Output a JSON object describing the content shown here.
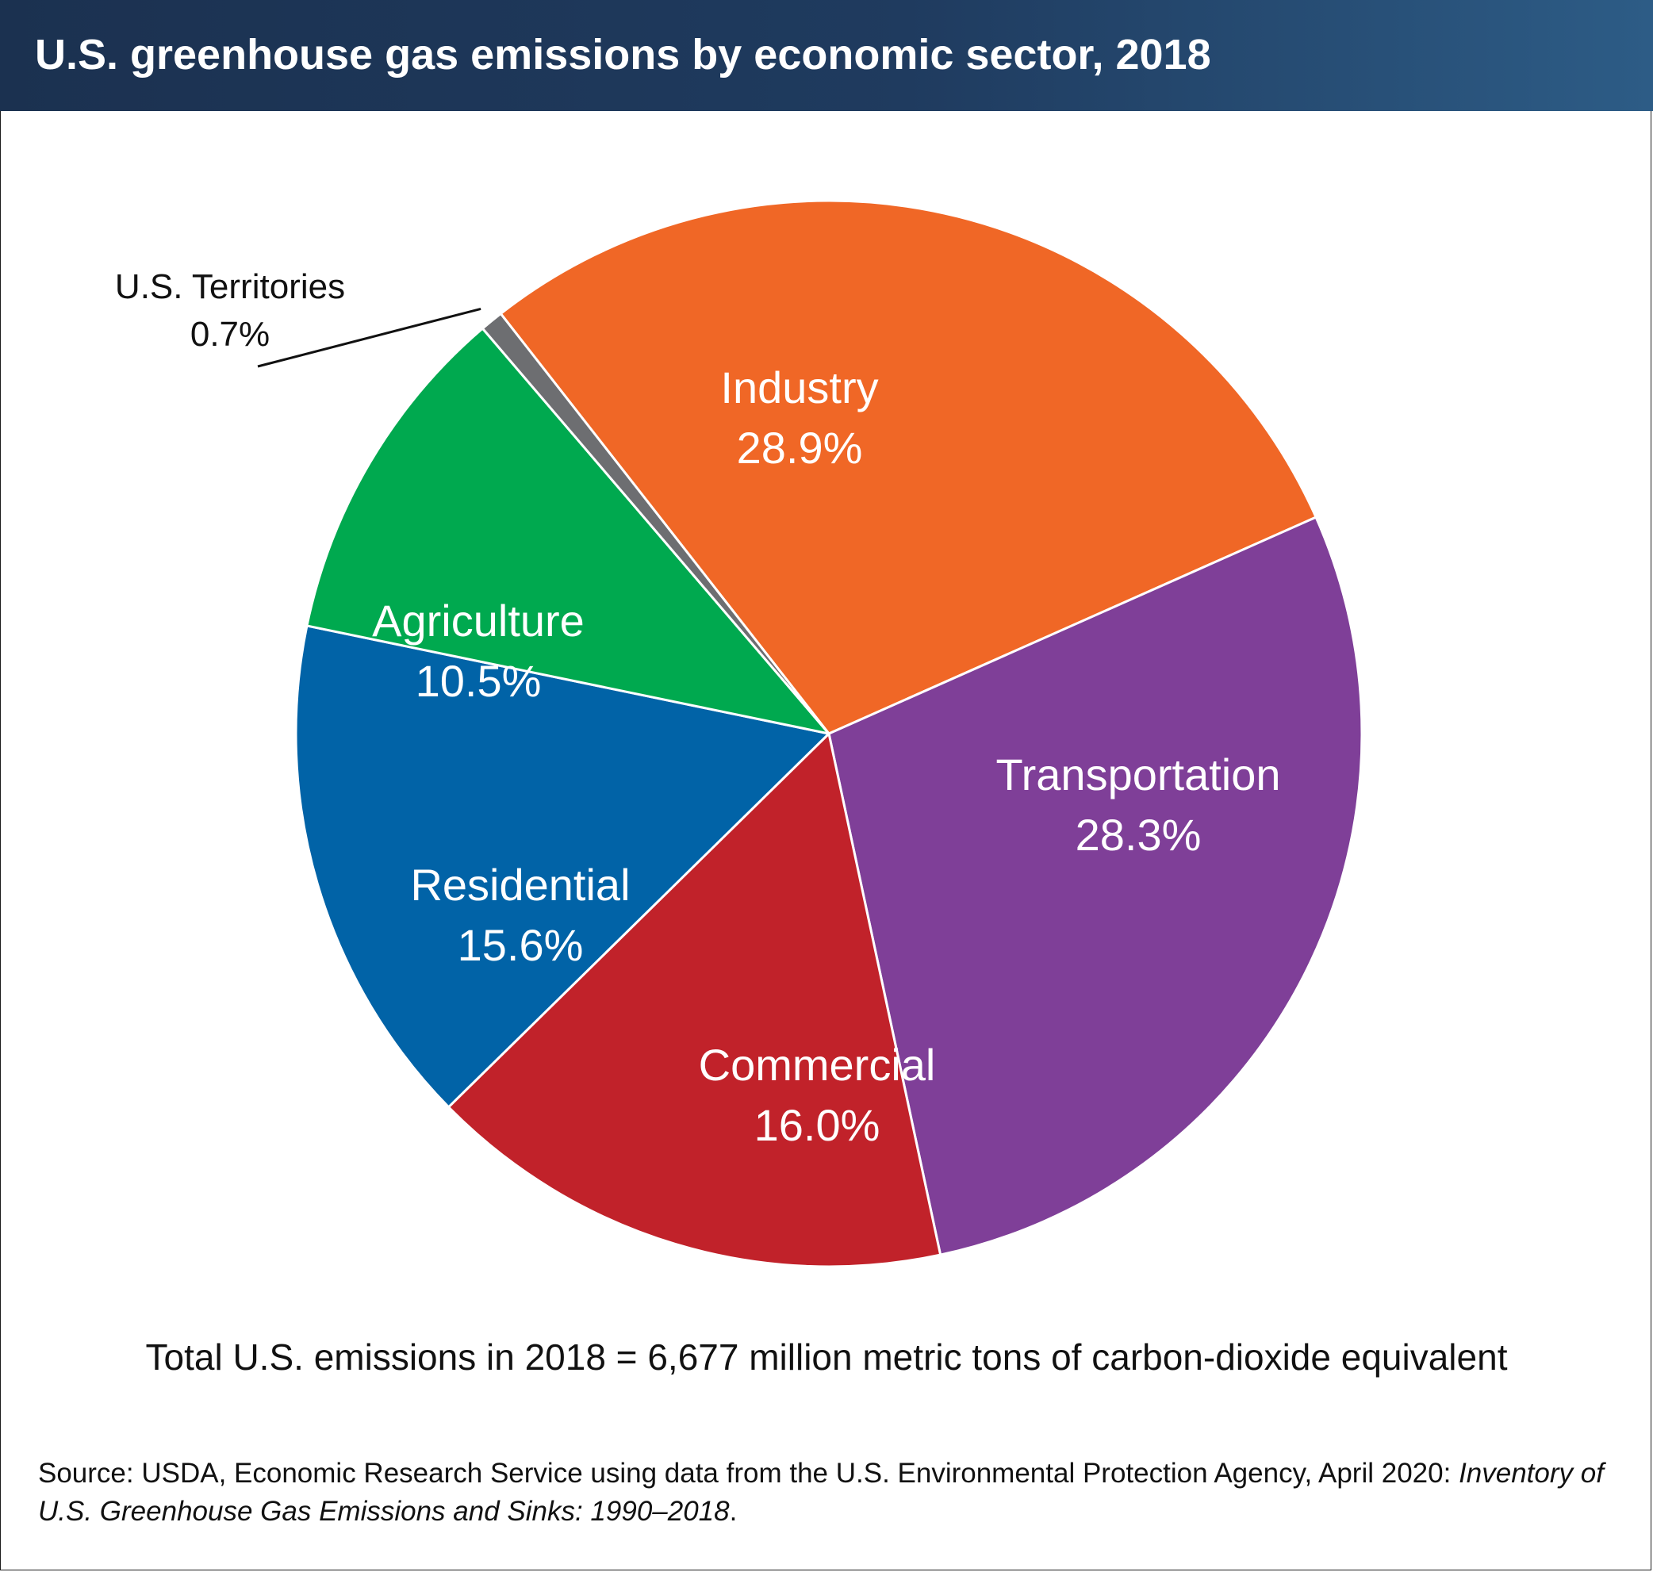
{
  "header": {
    "title": "U.S. greenhouse gas emissions by economic sector, 2018"
  },
  "chart_data": {
    "type": "pie",
    "title": "U.S. greenhouse gas emissions by economic sector, 2018",
    "unit": "%",
    "slices": [
      {
        "label": "Industry",
        "value": 28.9,
        "display": "28.9%",
        "color": "#f06726"
      },
      {
        "label": "Transportation",
        "value": 28.3,
        "display": "28.3%",
        "color": "#7f3f98"
      },
      {
        "label": "Commercial",
        "value": 16.0,
        "display": "16.0%",
        "color": "#c1222a"
      },
      {
        "label": "Residential",
        "value": 15.6,
        "display": "15.6%",
        "color": "#0163a7"
      },
      {
        "label": "Agriculture",
        "value": 10.5,
        "display": "10.5%",
        "color": "#00a94f"
      },
      {
        "label": "U.S. Territories",
        "value": 0.7,
        "display": "0.7%",
        "color": "#6d6e71"
      }
    ]
  },
  "notes": {
    "total": "Total U.S. emissions in 2018 = 6,677 million metric tons of carbon-dioxide equivalent",
    "source_prefix": "Source: USDA, Economic Research Service using data from the U.S. Environmental Protection Agency, April 2020: ",
    "source_title": "Inventory of U.S. Greenhouse Gas Emissions and Sinks: 1990–2018",
    "source_suffix": "."
  }
}
